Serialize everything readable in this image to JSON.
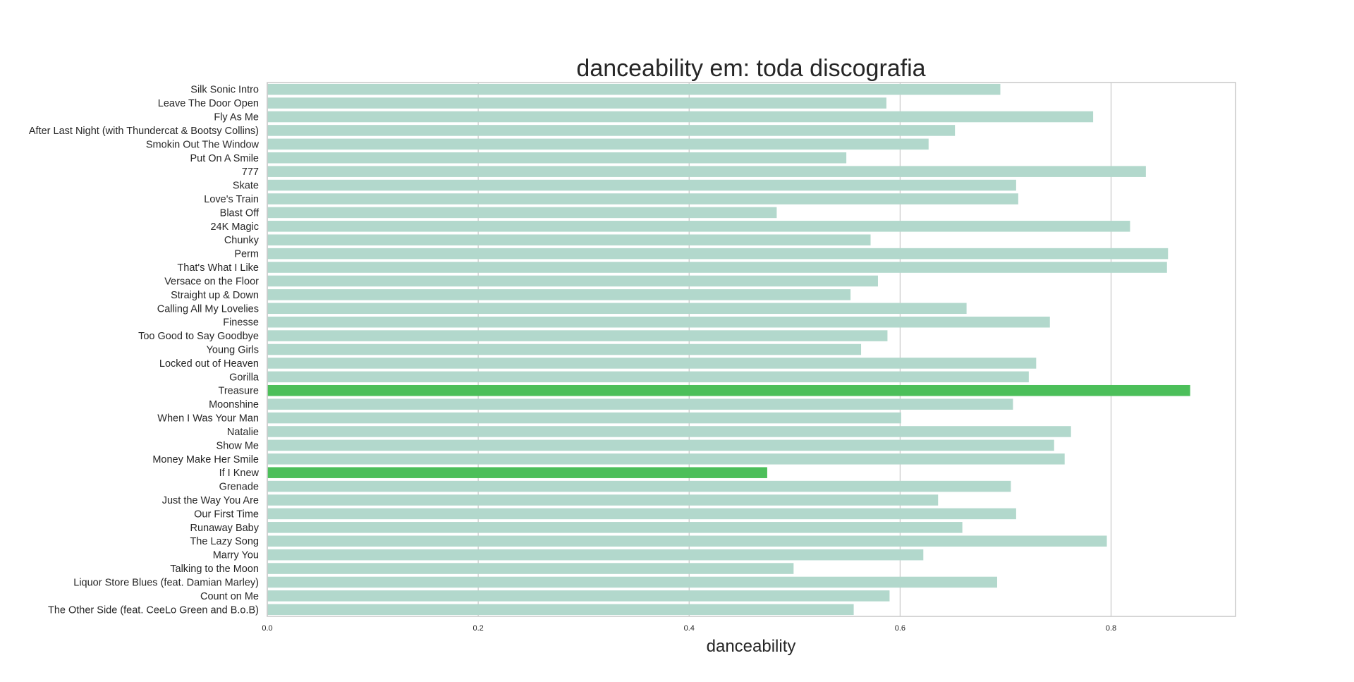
{
  "chart_data": {
    "type": "bar",
    "orientation": "horizontal",
    "title": "danceability em: toda discografia",
    "xlabel": "danceability",
    "ylabel": "",
    "xlim": [
      0,
      0.918
    ],
    "xticks": [
      "0.0",
      "0.2",
      "0.4",
      "0.6",
      "0.8"
    ],
    "xtick_values": [
      0,
      0.2,
      0.4,
      0.6,
      0.8
    ],
    "grid": true,
    "colors": {
      "default": "#b2d8cc",
      "highlight": "#4cbf5a"
    },
    "categories": [
      "Silk Sonic Intro",
      "Leave The Door Open",
      "Fly As Me",
      "After Last Night (with Thundercat & Bootsy Collins)",
      "Smokin Out The Window",
      "Put On A Smile",
      "777",
      "Skate",
      "Love's Train",
      "Blast Off",
      "24K Magic",
      "Chunky",
      "Perm",
      "That's What I Like",
      "Versace on the Floor",
      "Straight up & Down",
      "Calling All My Lovelies",
      "Finesse",
      "Too Good to Say Goodbye",
      "Young Girls",
      "Locked out of Heaven",
      "Gorilla",
      "Treasure",
      "Moonshine",
      "When I Was Your Man",
      "Natalie",
      "Show Me",
      "Money Make Her Smile",
      "If I Knew",
      "Grenade",
      "Just the Way You Are",
      "Our First Time",
      "Runaway Baby",
      "The Lazy Song",
      "Marry You",
      "Talking to the Moon",
      "Liquor Store Blues (feat. Damian Marley)",
      "Count on Me",
      "The Other Side (feat. CeeLo Green and B.o.B)"
    ],
    "values": [
      0.695,
      0.587,
      0.783,
      0.652,
      0.627,
      0.549,
      0.833,
      0.71,
      0.712,
      0.483,
      0.818,
      0.572,
      0.854,
      0.853,
      0.579,
      0.553,
      0.663,
      0.742,
      0.588,
      0.563,
      0.729,
      0.722,
      0.875,
      0.707,
      0.601,
      0.762,
      0.746,
      0.756,
      0.474,
      0.705,
      0.636,
      0.71,
      0.659,
      0.796,
      0.622,
      0.499,
      0.692,
      0.59,
      0.556
    ],
    "highlight": [
      "Treasure",
      "If I Knew"
    ]
  }
}
